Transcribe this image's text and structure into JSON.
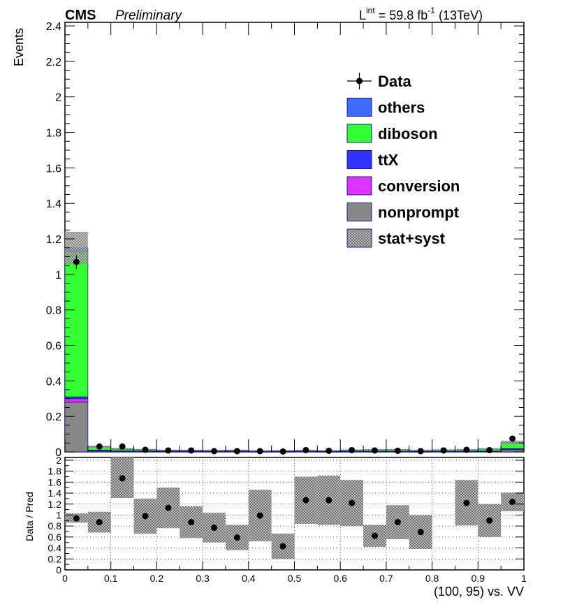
{
  "header": {
    "cms": "CMS",
    "preliminary": "Preliminary",
    "lumi_prefix": "L",
    "lumi_sup": "int",
    "lumi_mid": " = 59.8 fb",
    "lumi_sup2": "-1",
    "lumi_suffix": " (13TeV)"
  },
  "colors": {
    "others": "#3f6cff",
    "diboson": "#33ff33",
    "ttX": "#3333ff",
    "conversion": "#dd33ff",
    "nonprompt": "#888888",
    "band": "#bbbbbb",
    "data": "#000000"
  },
  "chart_data": [
    {
      "type": "bar",
      "stacked": true,
      "ylabel": "Events",
      "xlim": [
        0,
        1
      ],
      "ylim": [
        0,
        2.42
      ],
      "yticks": [
        "0",
        "0.2",
        "0.4",
        "0.6",
        "0.8",
        "1",
        "1.2",
        "1.4",
        "1.6",
        "1.8",
        "2",
        "2.2",
        "2.4"
      ],
      "legend": {
        "position": "top-right",
        "entries": [
          "Data",
          "others",
          "diboson",
          "ttX",
          "conversion",
          "nonprompt",
          "stat+syst"
        ]
      },
      "bin_edges": [
        0,
        0.05,
        0.1,
        0.15,
        0.2,
        0.25,
        0.3,
        0.35,
        0.4,
        0.45,
        0.5,
        0.55,
        0.6,
        0.65,
        0.7,
        0.75,
        0.8,
        0.85,
        0.9,
        0.95,
        1.0
      ],
      "series": [
        {
          "name": "nonprompt",
          "values": [
            0.28,
            0.005,
            0.003,
            0.002,
            0.002,
            0.002,
            0.002,
            0.002,
            0.001,
            0.001,
            0.002,
            0.001,
            0.002,
            0.002,
            0.002,
            0.001,
            0.002,
            0.002,
            0.002,
            0.012
          ]
        },
        {
          "name": "conversion",
          "values": [
            0.02,
            0.002,
            0.001,
            0.001,
            0.001,
            0.001,
            0.001,
            0.001,
            0.001,
            0.001,
            0.001,
            0.001,
            0.001,
            0.001,
            0.001,
            0.001,
            0.001,
            0.001,
            0.001,
            0.002
          ]
        },
        {
          "name": "ttX",
          "values": [
            0.01,
            0.003,
            0.002,
            0.002,
            0.002,
            0.002,
            0.002,
            0.002,
            0.001,
            0.001,
            0.001,
            0.001,
            0.001,
            0.001,
            0.001,
            0.001,
            0.001,
            0.001,
            0.002,
            0.004
          ]
        },
        {
          "name": "diboson",
          "values": [
            0.82,
            0.018,
            0.011,
            0.008,
            0.004,
            0.004,
            0.003,
            0.004,
            0.003,
            0.004,
            0.004,
            0.004,
            0.006,
            0.008,
            0.009,
            0.006,
            0.007,
            0.008,
            0.012,
            0.032
          ]
        },
        {
          "name": "others",
          "values": [
            0.02,
            0.002,
            0.001,
            0.001,
            0.001,
            0.001,
            0.001,
            0.001,
            0.001,
            0.001,
            0.001,
            0.001,
            0.001,
            0.001,
            0.001,
            0.001,
            0.001,
            0.001,
            0.001,
            0.003
          ]
        }
      ],
      "band_halfwidth": [
        0.09,
        0.004,
        0.003,
        0.003,
        0.002,
        0.002,
        0.002,
        0.002,
        0.002,
        0.002,
        0.002,
        0.002,
        0.002,
        0.002,
        0.002,
        0.002,
        0.002,
        0.002,
        0.002,
        0.01
      ],
      "data": [
        1.07,
        0.03,
        0.03,
        0.012,
        0.008,
        0.008,
        0.004,
        0.004,
        0.004,
        0.002,
        0.01,
        0.006,
        0.01,
        0.008,
        0.006,
        0.004,
        0.008,
        0.012,
        0.01,
        0.075
      ],
      "data_err": [
        0.04,
        0.006,
        0.006,
        0.004,
        0.003,
        0.003,
        0.002,
        0.002,
        0.002,
        0.001,
        0.003,
        0.002,
        0.003,
        0.003,
        0.002,
        0.002,
        0.003,
        0.003,
        0.003,
        0.008
      ]
    },
    {
      "type": "scatter",
      "ylabel": "Data / Pred",
      "xlabel": "(100, 95) vs. VV",
      "xlim": [
        0,
        1
      ],
      "ylim": [
        0,
        2.05
      ],
      "yticks": [
        "0",
        "0.2",
        "0.4",
        "0.6",
        "0.8",
        "1",
        "1.2",
        "1.4",
        "1.6",
        "1.8",
        "2"
      ],
      "xticks": [
        "0",
        "0.1",
        "0.2",
        "0.3",
        "0.4",
        "0.5",
        "0.6",
        "0.7",
        "0.8",
        "0.9",
        "1"
      ],
      "grid": true,
      "ratio": [
        0.94,
        0.87,
        1.67,
        0.98,
        1.13,
        0.87,
        0.77,
        0.59,
        0.99,
        0.43,
        1.27,
        1.27,
        1.22,
        0.62,
        0.87,
        0.69,
        null,
        1.22,
        0.9,
        1.24
      ],
      "band_low": [
        0.86,
        0.68,
        1.31,
        0.66,
        0.76,
        0.58,
        0.5,
        0.36,
        0.52,
        0.2,
        0.84,
        0.82,
        0.8,
        0.42,
        0.56,
        0.38,
        null,
        0.81,
        0.6,
        1.07
      ],
      "band_high": [
        1.03,
        1.06,
        2.05,
        1.3,
        1.5,
        1.16,
        1.04,
        0.82,
        1.46,
        0.66,
        1.7,
        1.72,
        1.64,
        0.82,
        1.18,
        1.0,
        null,
        1.64,
        1.2,
        1.41
      ]
    }
  ]
}
